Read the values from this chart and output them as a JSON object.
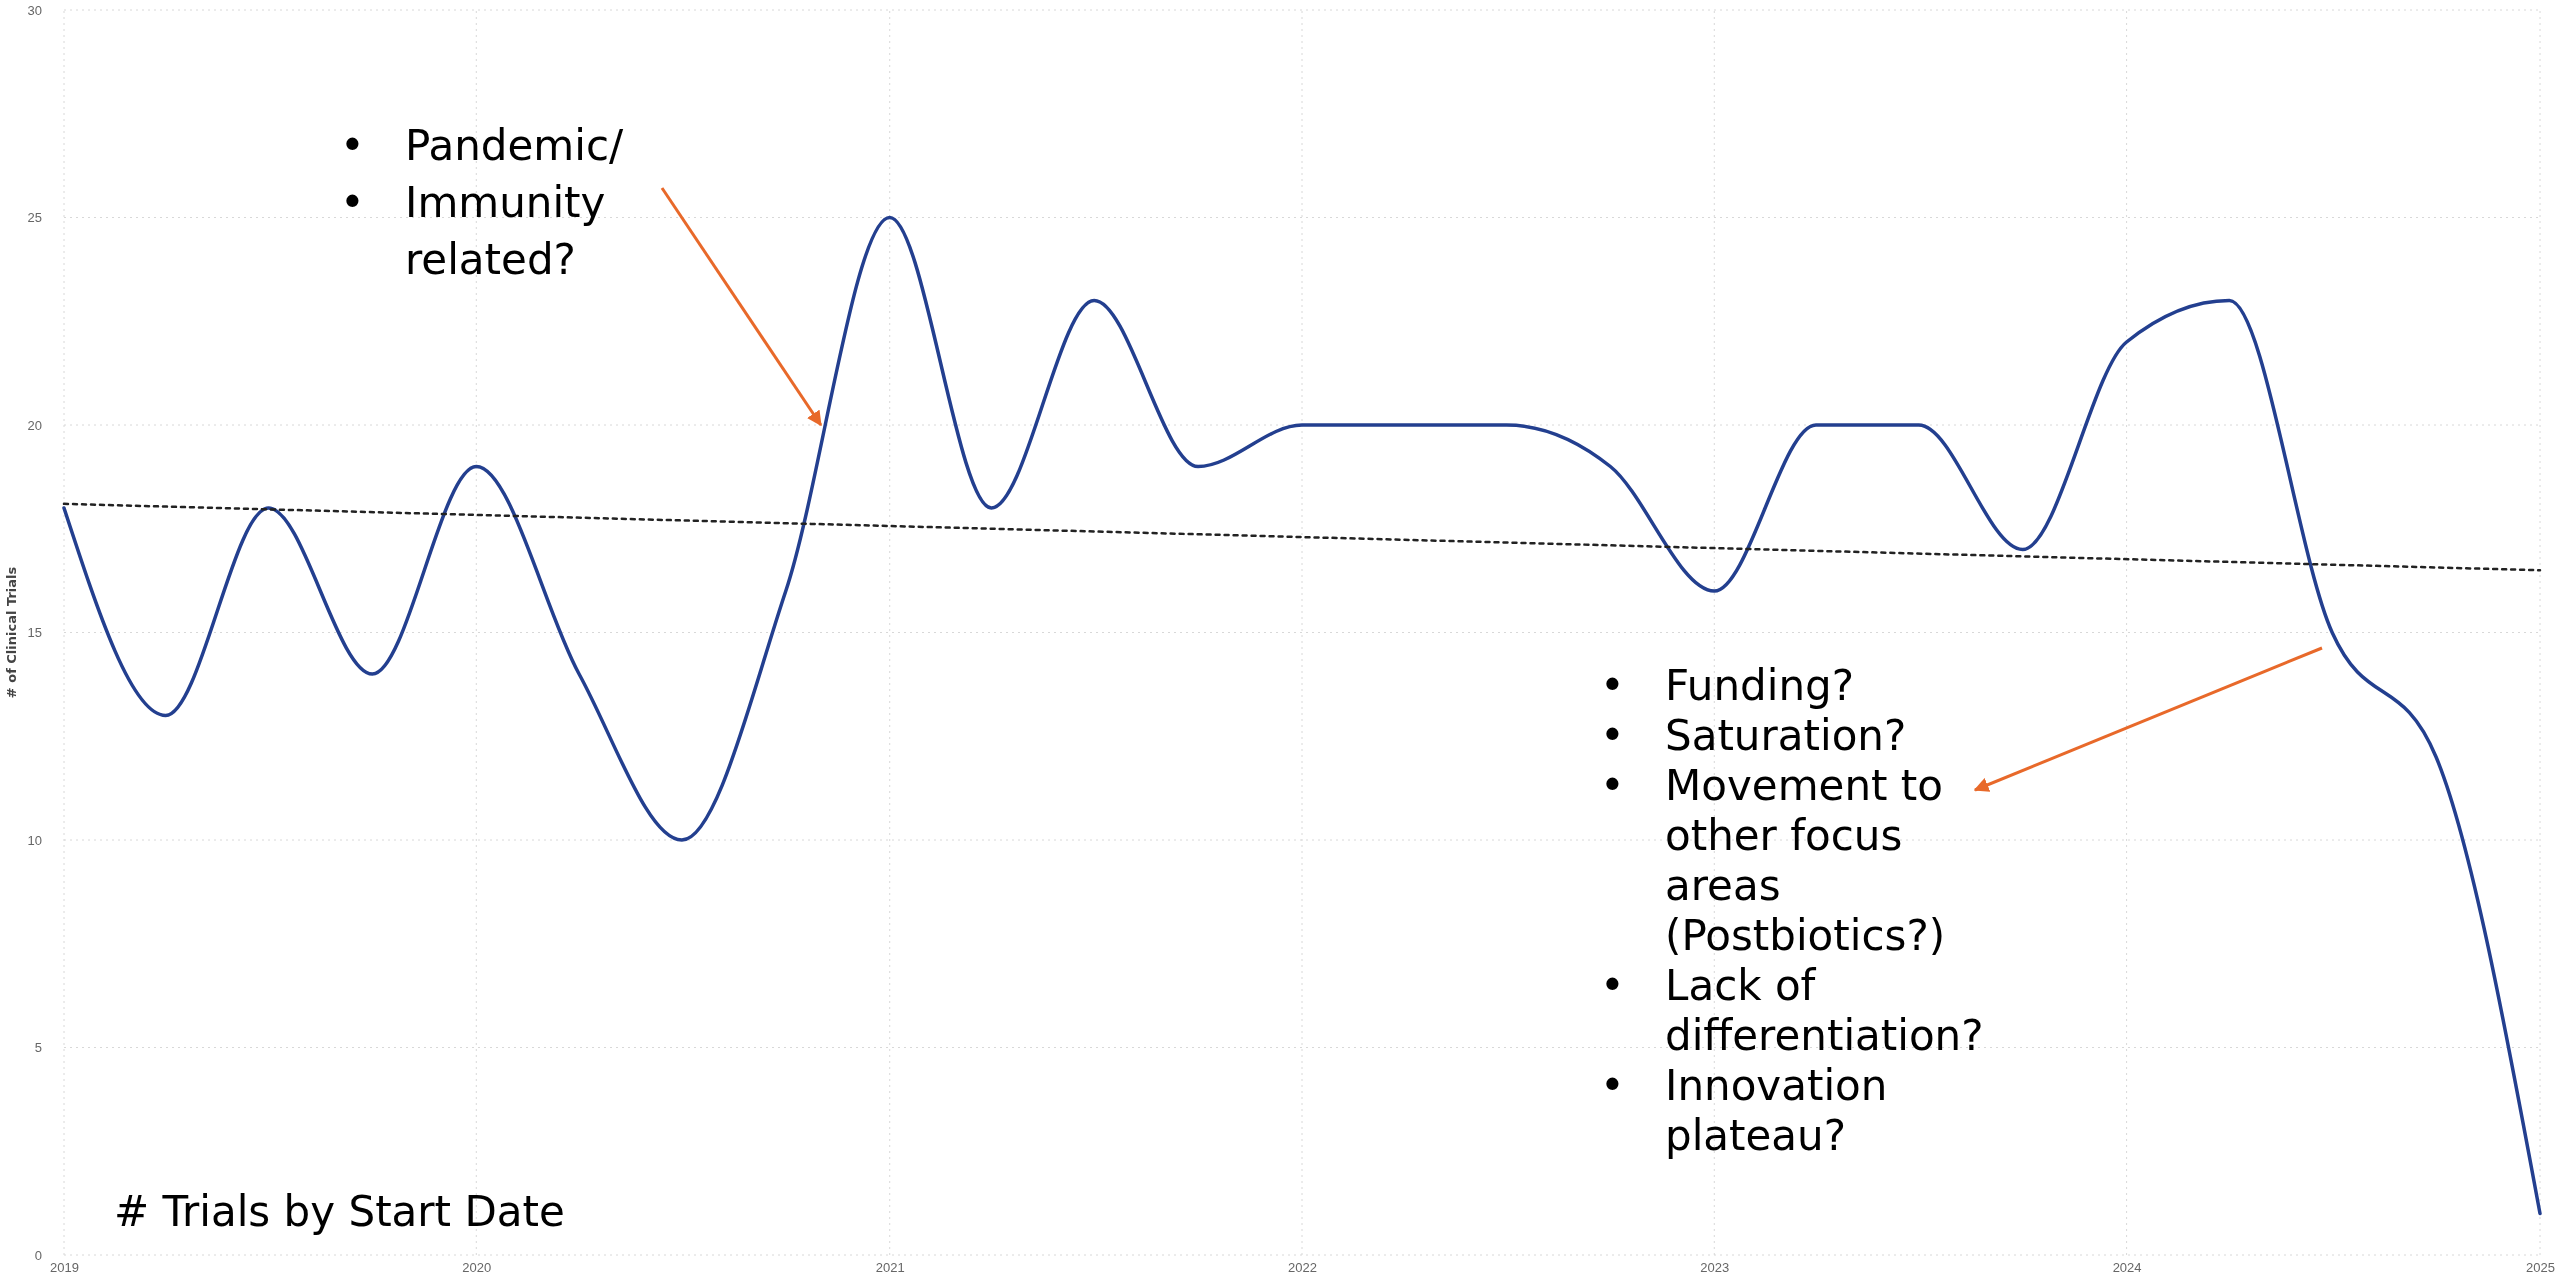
{
  "chart_data": {
    "type": "line",
    "title": "# Trials by Start Date",
    "ylabel": "# of Clinical Trials",
    "x": [
      "2019-01-01",
      "2019-04-01",
      "2019-07-01",
      "2019-10-01",
      "2020-01-01",
      "2020-04-01",
      "2020-07-01",
      "2020-10-01",
      "2021-01-01",
      "2021-04-01",
      "2021-07-01",
      "2021-10-01",
      "2022-01-01",
      "2022-04-01",
      "2022-07-01",
      "2022-10-01",
      "2023-01-01",
      "2023-04-01",
      "2023-07-01",
      "2023-10-01",
      "2024-01-01",
      "2024-04-01",
      "2024-07-01",
      "2024-10-01",
      "2025-01-01"
    ],
    "series": [
      {
        "type": "line",
        "color": "#233f8f",
        "line_style": "solid",
        "values": [
          18,
          13,
          18,
          14,
          19,
          14,
          10,
          16,
          25,
          18,
          23,
          19,
          20,
          20,
          20,
          19,
          16,
          20,
          20,
          17,
          22,
          23,
          15,
          12,
          1
        ]
      },
      {
        "type": "line",
        "color": "#222222",
        "line_style": "dotted",
        "x": [
          "2019-01-01",
          "2025-01-01"
        ],
        "values": [
          18.1,
          16.5
        ]
      }
    ],
    "xlim": [
      "2019-01-01",
      "2025-01-01"
    ],
    "xticks": [
      {
        "value": "2019-01-01",
        "label": "2019"
      },
      {
        "value": "2020-01-01",
        "label": "2020"
      },
      {
        "value": "2021-01-01",
        "label": "2021"
      },
      {
        "value": "2022-01-01",
        "label": "2022"
      },
      {
        "value": "2023-01-01",
        "label": "2023"
      },
      {
        "value": "2024-01-01",
        "label": "2024"
      },
      {
        "value": "2025-01-01",
        "label": "2025"
      }
    ],
    "ylim": [
      0,
      30
    ],
    "yticks": [
      0,
      5,
      10,
      15,
      20,
      25,
      30
    ],
    "grid": true,
    "marker": "none",
    "annotations": [
      {
        "text": "• Pandemic/\n• Immunity\nrelated?",
        "x": "2020-11-01",
        "y": 20
      },
      "• Funding?\n• Saturation?\n• Movement to\nother focus\nareas\n(Postbiotics?)\n• Lack of\ndifferentiation?\n• Innovation\nplateau?"
    ]
  }
}
